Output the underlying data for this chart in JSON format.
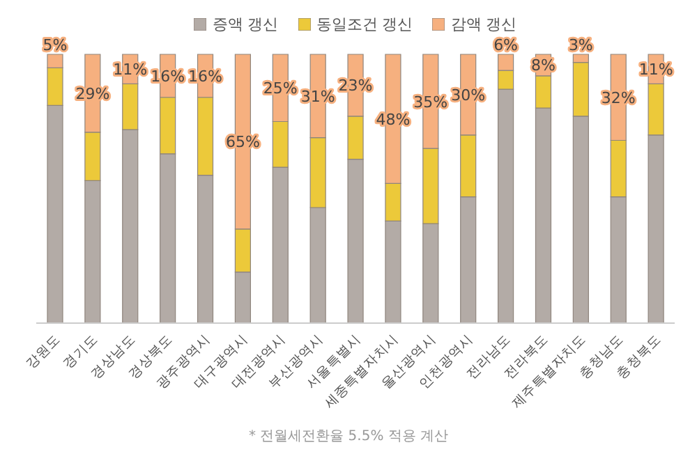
{
  "chart_data": {
    "type": "bar",
    "stacked": true,
    "legend": "top",
    "categories": [
      "강원도",
      "경기도",
      "경상남도",
      "경상북도",
      "광주광역시",
      "대구광역시",
      "대전광역시",
      "부산광역시",
      "서울특별시",
      "세종특별자치시",
      "울산광역시",
      "인천광역시",
      "전라남도",
      "전라북도",
      "제주특별자치도",
      "충청남도",
      "충청북도"
    ],
    "series": [
      {
        "name": "증액 갱신",
        "color": "#b3aba6",
        "values": [
          81,
          53,
          72,
          63,
          55,
          19,
          58,
          43,
          61,
          38,
          37,
          47,
          87,
          80,
          77,
          47,
          70
        ]
      },
      {
        "name": "동일조건 갱신",
        "color": "#ecc93a",
        "values": [
          14,
          18,
          17,
          21,
          29,
          16,
          17,
          26,
          16,
          14,
          28,
          23,
          7,
          12,
          20,
          21,
          19
        ]
      },
      {
        "name": "감액 갱신",
        "color": "#f6b07f",
        "values": [
          5,
          29,
          11,
          16,
          16,
          65,
          25,
          31,
          23,
          48,
          35,
          30,
          6,
          8,
          3,
          32,
          11
        ],
        "value_labels": [
          "5%",
          "29%",
          "11%",
          "16%",
          "16%",
          "65%",
          "25%",
          "31%",
          "23%",
          "48%",
          "35%",
          "30%",
          "6%",
          "8%",
          "3%",
          "32%",
          "11%"
        ]
      }
    ],
    "annotations": [
      "* 전월세전환율 5.5% 적용 계산"
    ]
  }
}
